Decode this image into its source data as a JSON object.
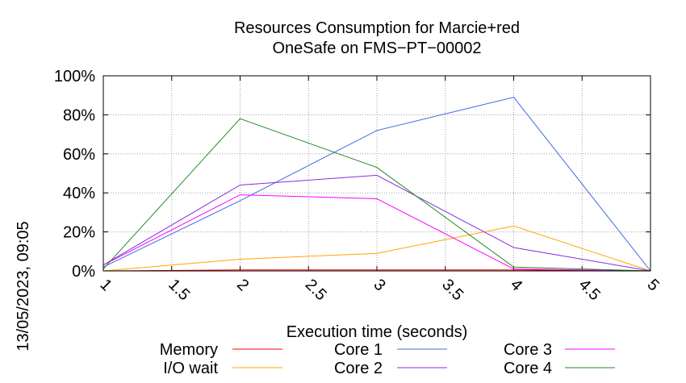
{
  "side_label": "13/05/2023, 09:05",
  "chart_data": {
    "type": "line",
    "title_lines": [
      "Resources Consumption for Marcie+red",
      "OneSafe on FMS−PT−00002"
    ],
    "xlabel": "Execution time (seconds)",
    "ylabel": "",
    "xlim": [
      1,
      5
    ],
    "ylim": [
      0,
      100
    ],
    "x_ticks": [
      "1",
      "1.5",
      "2",
      "2.5",
      "3",
      "3.5",
      "4",
      "4.5",
      "5"
    ],
    "y_ticks": [
      "0%",
      "20%",
      "40%",
      "60%",
      "80%",
      "100%"
    ],
    "grid": true,
    "legend_position": "bottom",
    "x": [
      1,
      2,
      3,
      4,
      5
    ],
    "series": [
      {
        "name": "Memory",
        "color": "#ff0000",
        "values": [
          0,
          0.5,
          0.5,
          0.5,
          0
        ]
      },
      {
        "name": "I/O wait",
        "color": "#ffa500",
        "values": [
          0,
          6,
          9,
          23,
          0
        ]
      },
      {
        "name": "Core 1",
        "color": "#4169e1",
        "values": [
          2,
          36,
          72,
          89,
          0
        ]
      },
      {
        "name": "Core 2",
        "color": "#8a2be2",
        "values": [
          3,
          44,
          49,
          12,
          0
        ]
      },
      {
        "name": "Core 3",
        "color": "#ff00ff",
        "values": [
          3,
          39,
          37,
          1,
          0
        ]
      },
      {
        "name": "Core 4",
        "color": "#228b22",
        "values": [
          1,
          78,
          53,
          2,
          0
        ]
      }
    ]
  }
}
